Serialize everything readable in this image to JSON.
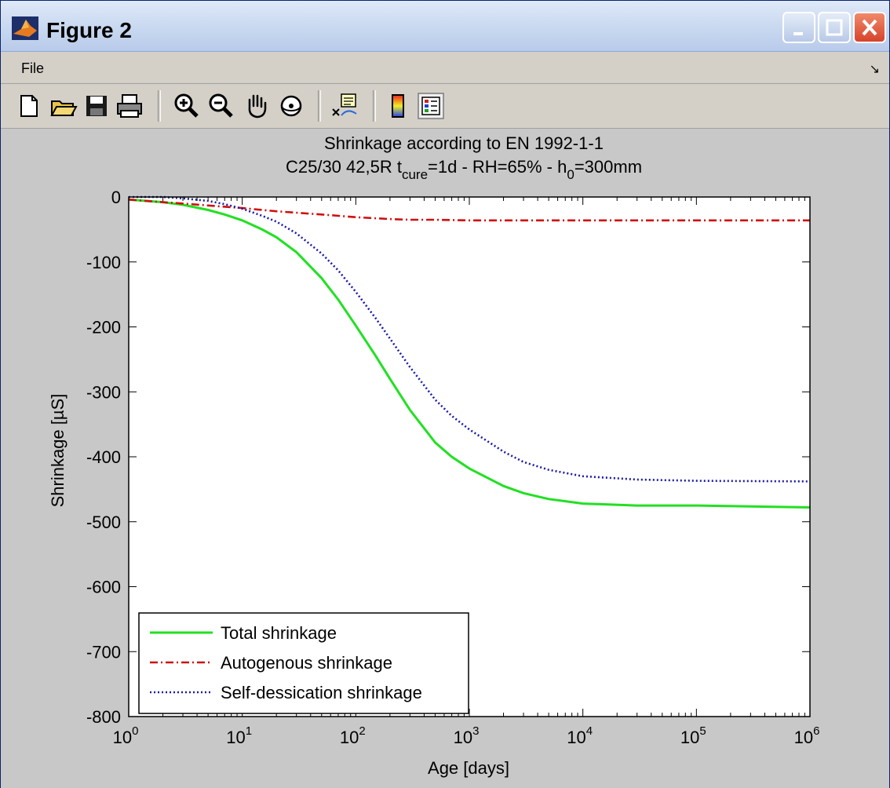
{
  "window": {
    "title": "Figure 2",
    "menu": {
      "file_label": "File"
    },
    "toolbar": {
      "buttons": [
        "new-figure",
        "open-file",
        "save-figure",
        "print-figure",
        "zoom-in",
        "zoom-out",
        "pan",
        "rotate-3d",
        "data-cursor",
        "colorbar",
        "legend"
      ]
    }
  },
  "chart_data": {
    "type": "line",
    "title": "Shrinkage according to EN 1992-1-1",
    "subtitle_parts": [
      "C25/30 42,5R t",
      "cure",
      "=1d - RH=65% - h",
      "0",
      "=300mm"
    ],
    "xlabel": "Age [days]",
    "ylabel": "Shrinkage [µS]",
    "xscale": "log",
    "xlim": [
      1,
      1000000
    ],
    "ylim": [
      -800,
      0
    ],
    "x_ticks": [
      {
        "base": "10",
        "exp": "0"
      },
      {
        "base": "10",
        "exp": "1"
      },
      {
        "base": "10",
        "exp": "2"
      },
      {
        "base": "10",
        "exp": "3"
      },
      {
        "base": "10",
        "exp": "4"
      },
      {
        "base": "10",
        "exp": "5"
      },
      {
        "base": "10",
        "exp": "6"
      }
    ],
    "y_ticks": [
      "0",
      "-100",
      "-200",
      "-300",
      "-400",
      "-500",
      "-600",
      "-700",
      "-800"
    ],
    "y_tick_values": [
      0,
      -100,
      -200,
      -300,
      -400,
      -500,
      -600,
      -700,
      -800
    ],
    "legend_position": "bottom-left",
    "series": [
      {
        "name": "Total shrinkage",
        "color": "#22e022",
        "style": "solid",
        "x": [
          1,
          2,
          3,
          5,
          7,
          10,
          15,
          20,
          30,
          50,
          70,
          100,
          150,
          200,
          300,
          500,
          700,
          1000,
          2000,
          3000,
          5000,
          10000,
          30000,
          100000,
          1000000
        ],
        "y": [
          -4,
          -8,
          -12,
          -20,
          -27,
          -36,
          -50,
          -62,
          -85,
          -125,
          -158,
          -198,
          -245,
          -280,
          -328,
          -378,
          -400,
          -418,
          -445,
          -456,
          -465,
          -472,
          -475,
          -475,
          -478
        ]
      },
      {
        "name": "Autogenous shrinkage",
        "color": "#d01010",
        "style": "dashdot",
        "x": [
          1,
          2,
          3,
          5,
          10,
          20,
          50,
          100,
          200,
          300,
          500,
          1000,
          10000,
          100000,
          1000000
        ],
        "y": [
          -4,
          -8,
          -10,
          -13,
          -17,
          -22,
          -27,
          -31,
          -34,
          -35,
          -35,
          -36,
          -36,
          -36,
          -36
        ]
      },
      {
        "name": "Self-dessication shrinkage",
        "color": "#1a1aa8",
        "style": "dotted",
        "x": [
          1,
          2,
          3,
          5,
          7,
          10,
          15,
          20,
          30,
          50,
          70,
          100,
          150,
          200,
          300,
          500,
          700,
          1000,
          2000,
          3000,
          5000,
          10000,
          30000,
          100000,
          1000000
        ],
        "y": [
          0,
          0,
          -2,
          -6,
          -11,
          -18,
          -29,
          -38,
          -56,
          -87,
          -113,
          -146,
          -187,
          -218,
          -262,
          -312,
          -337,
          -358,
          -392,
          -408,
          -420,
          -430,
          -435,
          -437,
          -438
        ]
      }
    ]
  }
}
